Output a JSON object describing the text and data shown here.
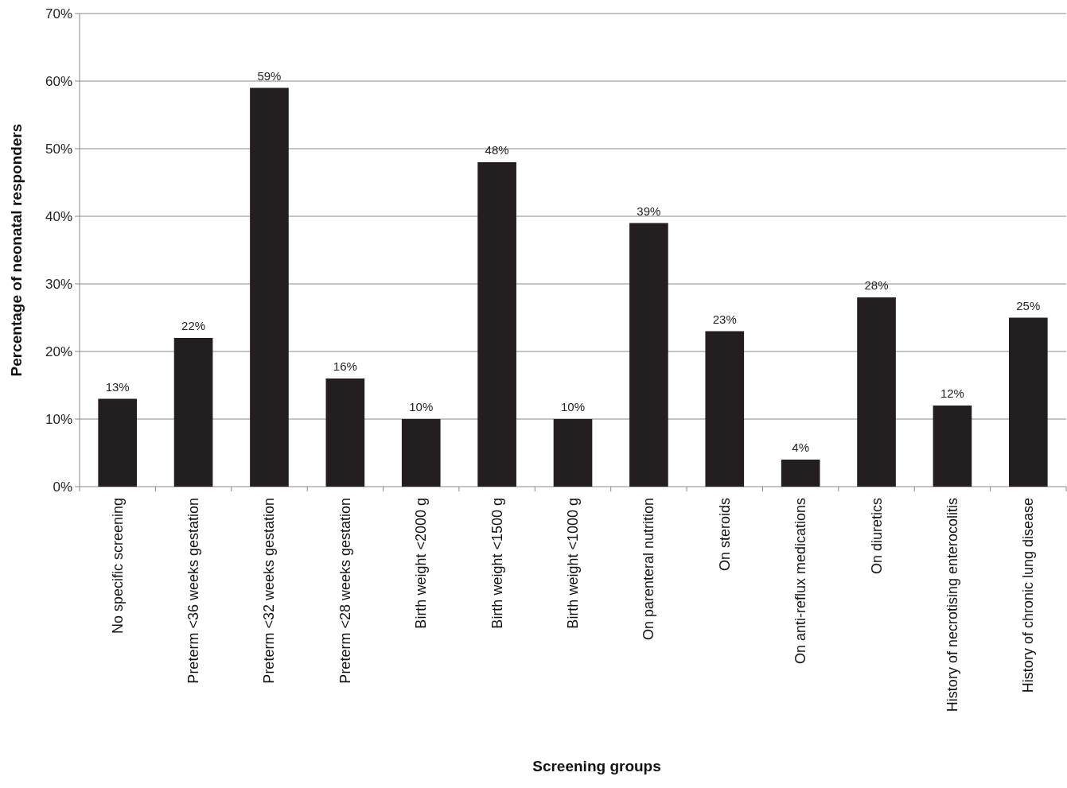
{
  "chart_data": {
    "type": "bar",
    "xlabel": "Screening groups",
    "ylabel": "Percentage of neonatal responders",
    "categories": [
      "No specific screening",
      "Preterm <36 weeks gestation",
      "Preterm <32 weeks gestation",
      "Preterm <28 weeks gestation",
      "Birth weight <2000 g",
      "Birth weight <1500 g",
      "Birth weight <1000 g",
      "On parenteral nutrition",
      "On steroids",
      "On anti-reflux medications",
      "On diuretics",
      "History of necrotising enterocolitis",
      "History of chronic lung disease"
    ],
    "values": [
      13,
      22,
      59,
      16,
      10,
      48,
      10,
      39,
      23,
      4,
      28,
      12,
      25
    ],
    "value_labels": [
      "13%",
      "22%",
      "59%",
      "16%",
      "10%",
      "48%",
      "10%",
      "39%",
      "23%",
      "4%",
      "28%",
      "12%",
      "25%"
    ],
    "color": "#231f20",
    "ylim": [
      0,
      70
    ],
    "yticks": [
      {
        "value": 0,
        "label": "0%"
      },
      {
        "value": 10,
        "label": "10%"
      },
      {
        "value": 20,
        "label": "20%"
      },
      {
        "value": 30,
        "label": "30%"
      },
      {
        "value": 40,
        "label": "40%"
      },
      {
        "value": 50,
        "label": "50%"
      },
      {
        "value": 60,
        "label": "60%"
      },
      {
        "value": 70,
        "label": "70%"
      }
    ],
    "grid": "y"
  }
}
